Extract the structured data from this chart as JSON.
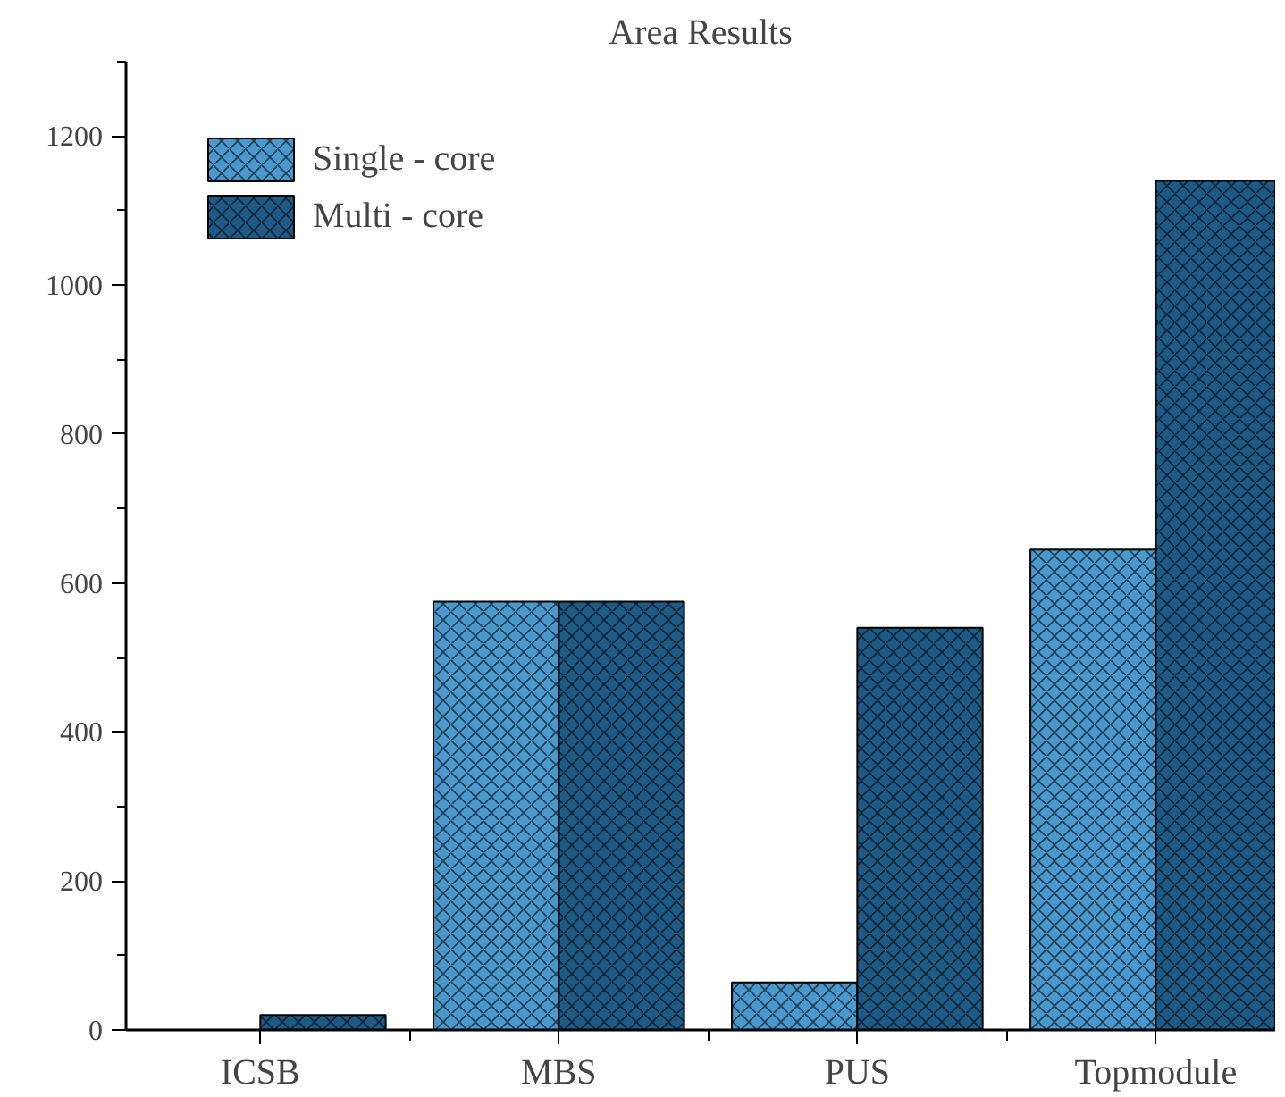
{
  "chart_data": {
    "type": "bar",
    "title": "Area Results",
    "categories": [
      "ICSB",
      "MBS",
      "PUS",
      "Topmodule"
    ],
    "series": [
      {
        "name": "Single - core",
        "color": "#4a98cc",
        "values": [
          null,
          575,
          64,
          645
        ]
      },
      {
        "name": "Multi - core",
        "color": "#1e5a86",
        "values": [
          20,
          575,
          540,
          1140
        ]
      }
    ],
    "ylim": [
      0,
      1300
    ],
    "yticks": [
      0,
      200,
      400,
      600,
      800,
      1000,
      1200
    ],
    "grid": false,
    "legend": "top left"
  }
}
